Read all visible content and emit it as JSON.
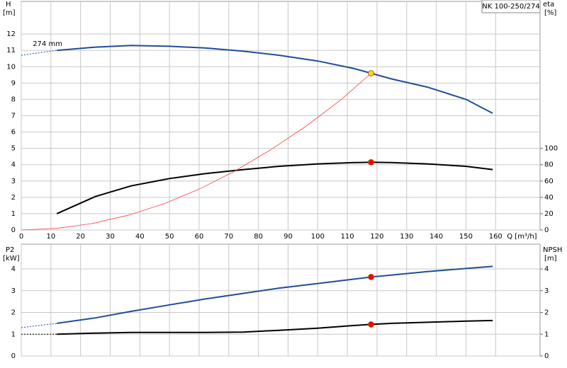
{
  "chart_data": [
    {
      "type": "line",
      "model": "NK 100-250/274",
      "ylabel": "H",
      "yunit": "[m]",
      "y2label": "eta",
      "y2unit": "[%]",
      "xlabel": "Q [m³/h]",
      "annotation": "274 mm",
      "xlim": [
        0,
        175
      ],
      "xticks": [
        0,
        10,
        20,
        30,
        40,
        50,
        60,
        70,
        80,
        90,
        100,
        110,
        120,
        130,
        140,
        150,
        160
      ],
      "ylim": [
        0,
        14
      ],
      "yticks": [
        0,
        1,
        2,
        3,
        4,
        5,
        6,
        7,
        8,
        9,
        10,
        11,
        12
      ],
      "y2lim": [
        0,
        280
      ],
      "y2ticks": [
        0,
        20,
        40,
        60,
        80,
        100
      ],
      "grid": true,
      "series": [
        {
          "x": [
            0,
            12
          ],
          "values": [
            10.7,
            11.0
          ],
          "color": "#1f4e96",
          "dash": true
        },
        {
          "x": [
            12,
            25,
            37,
            50,
            62,
            75,
            87,
            100,
            112,
            118,
            125,
            137,
            150,
            159
          ],
          "values": [
            11.0,
            11.2,
            11.3,
            11.25,
            11.15,
            10.95,
            10.7,
            10.35,
            9.9,
            9.6,
            9.25,
            8.75,
            8.0,
            7.15
          ],
          "color": "#1f4e96"
        },
        {
          "x": [
            12,
            25,
            37,
            50,
            62,
            75,
            87,
            100,
            112,
            118,
            125,
            137,
            150,
            159
          ],
          "values": [
            20,
            41,
            54,
            63,
            69,
            74,
            78,
            81,
            82.5,
            83,
            82.5,
            81,
            78,
            74
          ],
          "color": "#000000",
          "axis": "y2"
        },
        {
          "x": [
            0,
            12,
            24,
            36,
            48,
            60,
            72,
            84,
            96,
            108,
            118
          ],
          "values": [
            0,
            0.1,
            0.4,
            0.9,
            1.6,
            2.5,
            3.6,
            4.9,
            6.35,
            8.0,
            9.6
          ],
          "color": "#ff4040"
        },
        {
          "x": [
            118
          ],
          "values": [
            9.6
          ],
          "color": "#ffd700",
          "marker": true
        },
        {
          "x": [
            118
          ],
          "values": [
            83
          ],
          "color": "#ff0000",
          "marker": true,
          "axis": "y2"
        }
      ]
    },
    {
      "type": "line",
      "ylabel": "P2",
      "yunit": "[kW]",
      "y2label": "NPSH",
      "y2unit": "[m]",
      "xlim": [
        0,
        175
      ],
      "xticks": [
        0,
        10,
        20,
        30,
        40,
        50,
        60,
        70,
        80,
        90,
        100,
        110,
        120,
        130,
        140,
        150,
        160
      ],
      "ylim": [
        0,
        5.14
      ],
      "yticks": [
        0,
        1,
        2,
        3,
        4
      ],
      "y2lim": [
        0,
        5.14
      ],
      "y2ticks": [
        0,
        1,
        2,
        3,
        4
      ],
      "grid": true,
      "series": [
        {
          "x": [
            0,
            12
          ],
          "values": [
            1.3,
            1.5
          ],
          "color": "#1f4e96",
          "dash": true
        },
        {
          "x": [
            12,
            25,
            37,
            50,
            62,
            75,
            87,
            100,
            112,
            118,
            125,
            137,
            150,
            159
          ],
          "values": [
            1.5,
            1.75,
            2.05,
            2.35,
            2.62,
            2.88,
            3.12,
            3.33,
            3.53,
            3.63,
            3.72,
            3.88,
            4.02,
            4.12
          ],
          "color": "#1f4e96"
        },
        {
          "x": [
            0,
            12
          ],
          "values": [
            1.0,
            1.0
          ],
          "color": "#000000",
          "dash": true,
          "axis": "y2"
        },
        {
          "x": [
            12,
            25,
            37,
            50,
            62,
            75,
            87,
            100,
            112,
            118,
            125,
            137,
            150,
            159
          ],
          "values": [
            1.0,
            1.05,
            1.08,
            1.08,
            1.08,
            1.1,
            1.18,
            1.28,
            1.4,
            1.45,
            1.5,
            1.55,
            1.6,
            1.63
          ],
          "color": "#000000",
          "axis": "y2"
        },
        {
          "x": [
            118
          ],
          "values": [
            3.63
          ],
          "color": "#ff0000",
          "marker": true
        },
        {
          "x": [
            118
          ],
          "values": [
            1.45
          ],
          "color": "#ff0000",
          "marker": true,
          "axis": "y2"
        }
      ]
    }
  ]
}
